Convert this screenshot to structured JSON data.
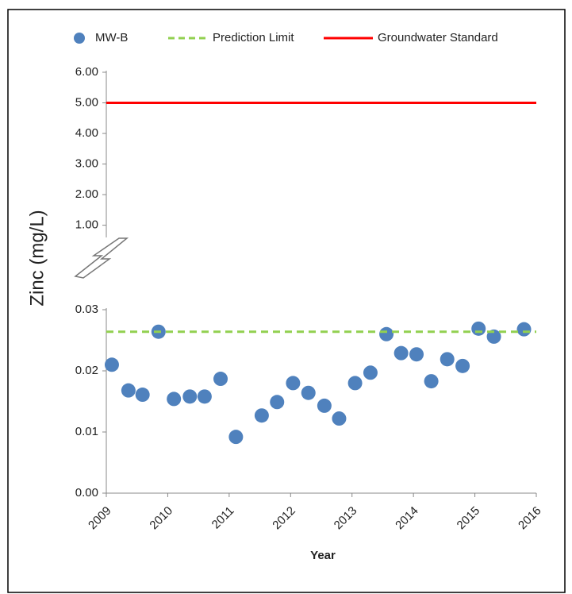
{
  "chart_data": [
    {
      "type": "scatter",
      "y_label": "Zinc (mg/L)",
      "x_label": "Year",
      "xlim": [
        2009,
        2016
      ],
      "xticks": [
        2009,
        2010,
        2011,
        2012,
        2013,
        2014,
        2015,
        2016
      ],
      "ylim": [
        0,
        0.03
      ],
      "yticks": [
        {
          "value": 0,
          "label": "0.00"
        },
        0.01,
        0.02,
        0.03
      ],
      "series": [
        {
          "name": "MW-B",
          "color": "#4f81bd",
          "style": "marker",
          "x": [
            2009.09,
            2009.36,
            2009.59,
            2009.85,
            2010.1,
            2010.36,
            2010.6,
            2010.86,
            2011.11,
            2011.53,
            2011.78,
            2012.04,
            2012.29,
            2012.55,
            2012.79,
            2013.05,
            2013.3,
            2013.56,
            2013.8,
            2014.05,
            2014.29,
            2014.55,
            2014.8,
            2015.06,
            2015.31,
            2015.8
          ],
          "values": [
            0.021,
            0.0168,
            0.0161,
            0.0264,
            0.0154,
            0.0158,
            0.0158,
            0.0187,
            0.0092,
            0.0127,
            0.0149,
            0.018,
            0.0164,
            0.0143,
            0.0122,
            0.018,
            0.0197,
            0.026,
            0.0229,
            0.0227,
            0.0183,
            0.0219,
            0.0208,
            0.0269,
            0.0256,
            0.0268
          ]
        },
        {
          "name": "Prediction Limit",
          "color": "#92d050",
          "style": "dashed",
          "x": [
            2009,
            2016
          ],
          "values": [
            0.0264,
            0.0264
          ]
        }
      ]
    },
    {
      "type": "scatter",
      "xlim": [
        2009,
        2016
      ],
      "ylim": [
        0.6,
        6
      ],
      "yticks": [
        {
          "value": 1,
          "label": "1.00"
        },
        {
          "value": 2,
          "label": "2.00"
        },
        {
          "value": 3,
          "label": "3.00"
        },
        {
          "value": 4,
          "label": "4.00"
        },
        {
          "value": 5,
          "label": "5.00"
        },
        {
          "value": 6,
          "label": "6.00"
        }
      ],
      "series": [
        {
          "name": "Groundwater Standard",
          "color": "#ff0000",
          "style": "solid",
          "x": [
            2009,
            2016
          ],
          "values": [
            5,
            5
          ]
        }
      ]
    }
  ]
}
